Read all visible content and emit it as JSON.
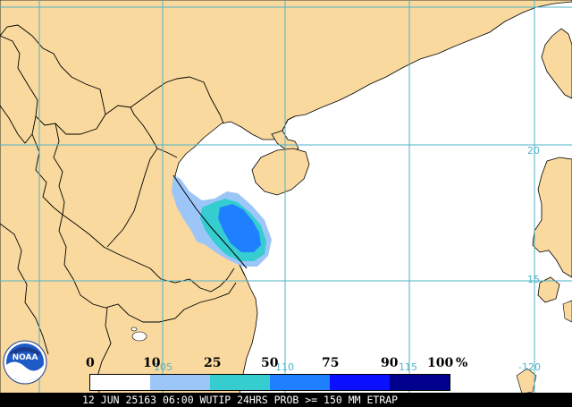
{
  "map": {
    "land_color": "#f9d99e",
    "water_color": "#ffffff",
    "border_color": "#000000",
    "gridline_color": "#4fb3c8",
    "grid_labels": {
      "lat_20": "20",
      "lat_15": "15",
      "lon_105": "105",
      "lon_110": "110",
      "lon_115": "115",
      "lon_120": "-120"
    }
  },
  "legend": {
    "unit": "%",
    "ticks": [
      "0",
      "10",
      "25",
      "50",
      "75",
      "90",
      "100"
    ],
    "bins": [
      {
        "range": "0-10",
        "color": "#ffffff"
      },
      {
        "range": "10-25",
        "color": "#9dc6f8"
      },
      {
        "range": "25-50",
        "color": "#35cdd0"
      },
      {
        "range": "50-75",
        "color": "#1e80ff"
      },
      {
        "range": "75-90",
        "color": "#0a10ff"
      },
      {
        "range": "90-100",
        "color": "#00008c"
      }
    ]
  },
  "footer": {
    "text": "12 JUN 25163 06:00 WUTIP 24HRS PROB >= 150 MM ETRAP"
  },
  "logo": {
    "text": "NOAA",
    "icon": "noaa-logo-icon"
  }
}
